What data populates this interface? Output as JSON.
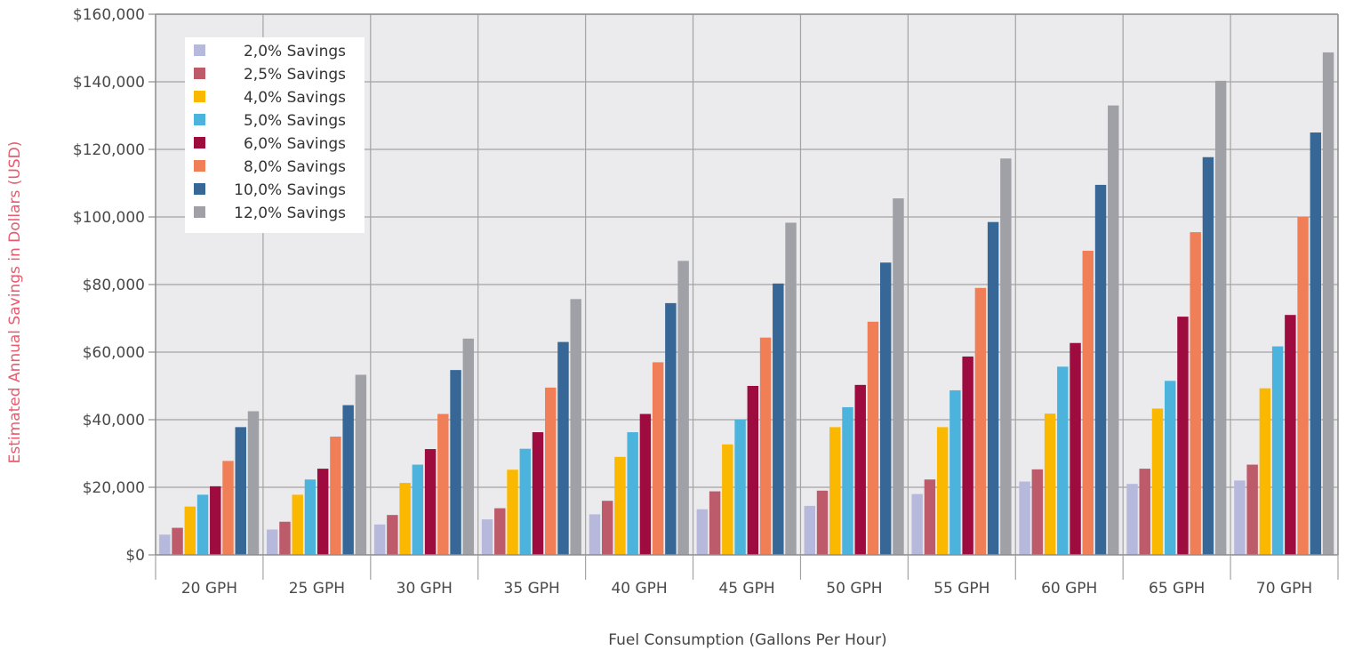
{
  "chart_data": {
    "type": "bar",
    "title": "",
    "xlabel": "Fuel Consumption (Gallons Per Hour)",
    "ylabel": "Estimated Annual Savings in Dollars (USD)",
    "ylim": [
      0,
      160000
    ],
    "yticks": [
      "$0",
      "$20,000",
      "$40,000",
      "$60,000",
      "$80,000",
      "$100,000",
      "$120,000",
      "$140,000",
      "$160,000"
    ],
    "ytick_values": [
      0,
      20000,
      40000,
      60000,
      80000,
      100000,
      120000,
      140000,
      160000
    ],
    "categories": [
      "20 GPH",
      "25 GPH",
      "30 GPH",
      "35 GPH",
      "40 GPH",
      "45 GPH",
      "50 GPH",
      "55 GPH",
      "60 GPH",
      "65 GPH",
      "70 GPH"
    ],
    "grid": true,
    "legend_position": "top-left",
    "series": [
      {
        "name": "2,0% Savings",
        "color": "#b7b9dc",
        "values": [
          6000,
          7500,
          9000,
          10500,
          12000,
          13500,
          14500,
          18000,
          21700,
          21000,
          22000
        ]
      },
      {
        "name": "2,5% Savings",
        "color": "#bd5b6a",
        "values": [
          8000,
          9800,
          11800,
          13800,
          16000,
          18800,
          19000,
          22300,
          25300,
          25500,
          26700
        ]
      },
      {
        "name": "4,0% Savings",
        "color": "#fbb800",
        "values": [
          14300,
          17800,
          21300,
          25200,
          29000,
          32700,
          37800,
          37800,
          41800,
          43300,
          49300
        ]
      },
      {
        "name": "5,0% Savings",
        "color": "#4cb3dc",
        "values": [
          17800,
          22300,
          26700,
          31400,
          36300,
          40000,
          43700,
          48700,
          55700,
          51500,
          61700
        ]
      },
      {
        "name": "6,0% Savings",
        "color": "#9e0b3f",
        "values": [
          20300,
          25500,
          31300,
          36300,
          41700,
          50000,
          50300,
          58700,
          62700,
          70500,
          71000
        ]
      },
      {
        "name": "8,0% Savings",
        "color": "#f07f57",
        "values": [
          27800,
          35000,
          41700,
          49500,
          57000,
          64300,
          69000,
          79000,
          90000,
          95500,
          100000
        ]
      },
      {
        "name": "10,0% Savings",
        "color": "#366797",
        "values": [
          37800,
          44300,
          54700,
          63000,
          74500,
          80300,
          86500,
          98500,
          109500,
          117700,
          125000
        ]
      },
      {
        "name": "12,0% Savings",
        "color": "#9fa1a6",
        "values": [
          42500,
          53300,
          64000,
          75700,
          87000,
          98300,
          105500,
          117300,
          133000,
          140300,
          148700
        ]
      }
    ]
  }
}
